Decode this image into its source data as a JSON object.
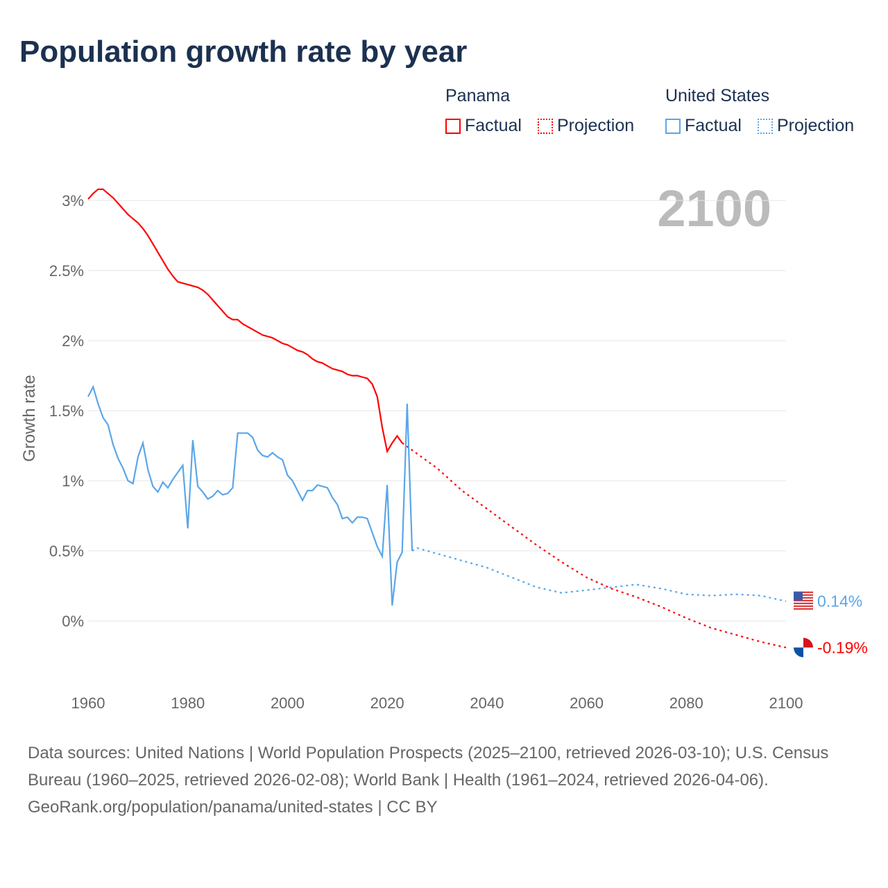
{
  "title": "Population growth rate by year",
  "legend": {
    "groups": [
      {
        "name": "Panama",
        "items": [
          {
            "label": "Factual",
            "style": "solid",
            "color": "#ff0000"
          },
          {
            "label": "Projection",
            "style": "dotted",
            "color": "#ff0000"
          }
        ]
      },
      {
        "name": "United States",
        "items": [
          {
            "label": "Factual",
            "style": "solid",
            "color": "#5ba6e8"
          },
          {
            "label": "Projection",
            "style": "dotted",
            "color": "#5ba6e8"
          }
        ]
      }
    ]
  },
  "current_year_label": "2100",
  "source": {
    "text": "Data sources: United Nations | World Population Prospects (2025–2100, retrieved 2026-03-10); U.S. Census Bureau (1960–2025, retrieved 2026-02-08); World Bank | Health (1961–2024, retrieved 2026-04-06).",
    "credit": "GeoRank.org/population/panama/united-states | CC BY"
  },
  "chart_data": {
    "type": "line",
    "title": "Population growth rate by year",
    "xlabel": "",
    "ylabel": "Growth rate",
    "xlim": [
      1960,
      2100
    ],
    "ylim": [
      -0.35,
      3.2
    ],
    "x_ticks": [
      "1960",
      "1980",
      "2000",
      "2020",
      "2040",
      "2060",
      "2080",
      "2100"
    ],
    "y_ticks": [
      {
        "v": 0,
        "label": "0%"
      },
      {
        "v": 0.5,
        "label": "0.5%"
      },
      {
        "v": 1,
        "label": "1%"
      },
      {
        "v": 1.5,
        "label": "1.5%"
      },
      {
        "v": 2,
        "label": "2%"
      },
      {
        "v": 2.5,
        "label": "2.5%"
      },
      {
        "v": 3,
        "label": "3%"
      }
    ],
    "grid": true,
    "series": [
      {
        "name": "Panama",
        "color": "#ff0000",
        "end_label": "-0.19%",
        "factual": {
          "x": [
            1960,
            1961,
            1962,
            1963,
            1964,
            1965,
            1966,
            1967,
            1968,
            1969,
            1970,
            1971,
            1972,
            1973,
            1974,
            1975,
            1976,
            1977,
            1978,
            1979,
            1980,
            1981,
            1982,
            1983,
            1984,
            1985,
            1986,
            1987,
            1988,
            1989,
            1990,
            1991,
            1992,
            1993,
            1994,
            1995,
            1996,
            1997,
            1998,
            1999,
            2000,
            2001,
            2002,
            2003,
            2004,
            2005,
            2006,
            2007,
            2008,
            2009,
            2010,
            2011,
            2012,
            2013,
            2014,
            2015,
            2016,
            2017,
            2018,
            2019,
            2020,
            2021,
            2022,
            2023
          ],
          "y": [
            3.01,
            3.05,
            3.08,
            3.08,
            3.05,
            3.02,
            2.98,
            2.94,
            2.9,
            2.87,
            2.84,
            2.8,
            2.75,
            2.69,
            2.63,
            2.57,
            2.51,
            2.46,
            2.42,
            2.41,
            2.4,
            2.39,
            2.38,
            2.36,
            2.33,
            2.29,
            2.25,
            2.21,
            2.17,
            2.15,
            2.15,
            2.12,
            2.1,
            2.08,
            2.06,
            2.04,
            2.03,
            2.02,
            2.0,
            1.98,
            1.97,
            1.95,
            1.93,
            1.92,
            1.9,
            1.87,
            1.85,
            1.84,
            1.82,
            1.8,
            1.79,
            1.78,
            1.76,
            1.75,
            1.75,
            1.74,
            1.73,
            1.69,
            1.6,
            1.38,
            1.21,
            1.27,
            1.32,
            1.27
          ]
        },
        "projection": {
          "x": [
            2023,
            2030,
            2035,
            2040,
            2045,
            2050,
            2055,
            2060,
            2065,
            2070,
            2075,
            2080,
            2085,
            2090,
            2095,
            2100
          ],
          "y": [
            1.27,
            1.09,
            0.93,
            0.8,
            0.67,
            0.54,
            0.42,
            0.31,
            0.23,
            0.17,
            0.1,
            0.02,
            -0.05,
            -0.1,
            -0.15,
            -0.19
          ]
        }
      },
      {
        "name": "United States",
        "color": "#5ba6e8",
        "end_label": "0.14%",
        "factual": {
          "x": [
            1960,
            1961,
            1962,
            1963,
            1964,
            1965,
            1966,
            1967,
            1968,
            1969,
            1970,
            1971,
            1972,
            1973,
            1974,
            1975,
            1976,
            1977,
            1978,
            1979,
            1980,
            1981,
            1982,
            1983,
            1984,
            1985,
            1986,
            1987,
            1988,
            1989,
            1990,
            1991,
            1992,
            1993,
            1994,
            1995,
            1996,
            1997,
            1998,
            1999,
            2000,
            2001,
            2002,
            2003,
            2004,
            2005,
            2006,
            2007,
            2008,
            2009,
            2010,
            2011,
            2012,
            2013,
            2014,
            2015,
            2016,
            2017,
            2018,
            2019,
            2020,
            2021,
            2022,
            2023,
            2024,
            2025
          ],
          "y": [
            1.6,
            1.67,
            1.55,
            1.45,
            1.4,
            1.26,
            1.16,
            1.09,
            1.0,
            0.98,
            1.17,
            1.27,
            1.08,
            0.96,
            0.92,
            0.99,
            0.95,
            1.01,
            1.06,
            1.11,
            0.66,
            1.29,
            0.96,
            0.92,
            0.87,
            0.89,
            0.93,
            0.9,
            0.91,
            0.95,
            1.34,
            1.34,
            1.34,
            1.31,
            1.22,
            1.18,
            1.17,
            1.2,
            1.17,
            1.15,
            1.04,
            1.0,
            0.93,
            0.86,
            0.93,
            0.93,
            0.97,
            0.96,
            0.95,
            0.88,
            0.83,
            0.73,
            0.74,
            0.7,
            0.74,
            0.74,
            0.73,
            0.63,
            0.53,
            0.46,
            0.97,
            0.11,
            0.42,
            0.49,
            1.55,
            0.5
          ]
        },
        "projection": {
          "x": [
            2025,
            2026,
            2030,
            2035,
            2040,
            2045,
            2050,
            2055,
            2060,
            2065,
            2070,
            2075,
            2080,
            2085,
            2090,
            2095,
            2100
          ],
          "y": [
            0.5,
            0.52,
            0.48,
            0.43,
            0.38,
            0.31,
            0.24,
            0.2,
            0.22,
            0.24,
            0.26,
            0.23,
            0.19,
            0.18,
            0.19,
            0.18,
            0.14
          ]
        }
      }
    ]
  }
}
